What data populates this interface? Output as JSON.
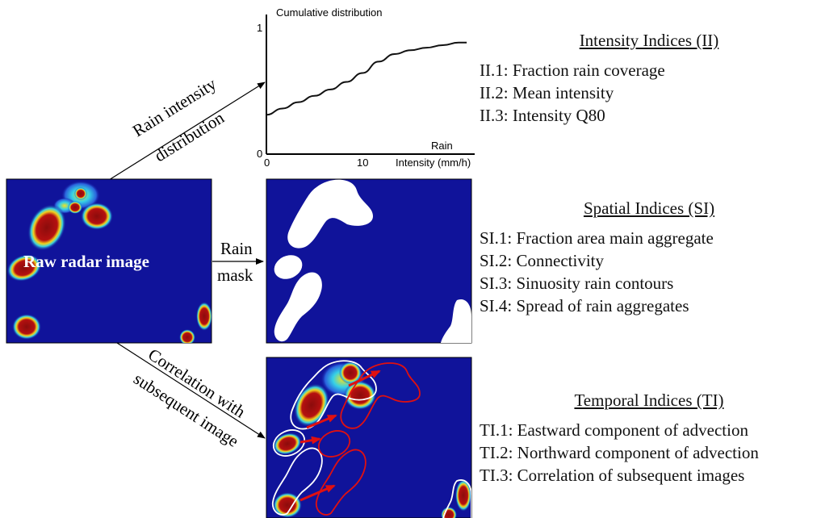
{
  "chart": {
    "title": "Cumulative distribution",
    "y_ticks": [
      "0",
      "1"
    ],
    "x_ticks": [
      "0",
      "10"
    ],
    "x_label_line1": "Rain",
    "x_label_line2": "Intensity (mm/h)"
  },
  "chart_data": {
    "type": "line",
    "title": "Cumulative distribution",
    "xlabel": "Rain Intensity (mm/h)",
    "ylabel": "",
    "xlim": [
      0,
      26
    ],
    "ylim": [
      0,
      1
    ],
    "x": [
      0,
      2,
      4,
      6,
      8,
      10,
      12,
      14,
      16,
      18,
      20,
      22,
      24,
      25
    ],
    "y": [
      0.31,
      0.36,
      0.41,
      0.46,
      0.51,
      0.57,
      0.64,
      0.73,
      0.79,
      0.82,
      0.84,
      0.86,
      0.88,
      0.88
    ]
  },
  "arrows": {
    "upper_line1": "Rain intensity",
    "upper_line2": "distribution",
    "middle_line1": "Rain",
    "middle_line2": "mask",
    "lower_line1": "Correlation with",
    "lower_line2": "subsequent image"
  },
  "raw_image_label": "Raw radar image",
  "intensity_indices": {
    "heading": "Intensity Indices (II)",
    "items": [
      "II.1: Fraction rain coverage",
      "II.2: Mean intensity",
      "II.3: Intensity Q80"
    ]
  },
  "spatial_indices": {
    "heading": "Spatial Indices (SI)",
    "items": [
      "SI.1: Fraction area main aggregate",
      "SI.2: Connectivity",
      "SI.3: Sinuosity rain contours",
      "SI.4: Spread of rain aggregates"
    ]
  },
  "temporal_indices": {
    "heading": "Temporal Indices (TI)",
    "items": [
      "TI.1: Eastward component of advection",
      "TI.2: Northward component of advection",
      "TI.3: Correlation of subsequent images"
    ]
  },
  "colors": {
    "radar_background": "#10139a",
    "rain_core": "#8b0c0c",
    "rain_mask": "#ffffff",
    "contour_current": "#ffffff",
    "contour_next": "#e01010",
    "advection_arrow": "#e01010"
  }
}
